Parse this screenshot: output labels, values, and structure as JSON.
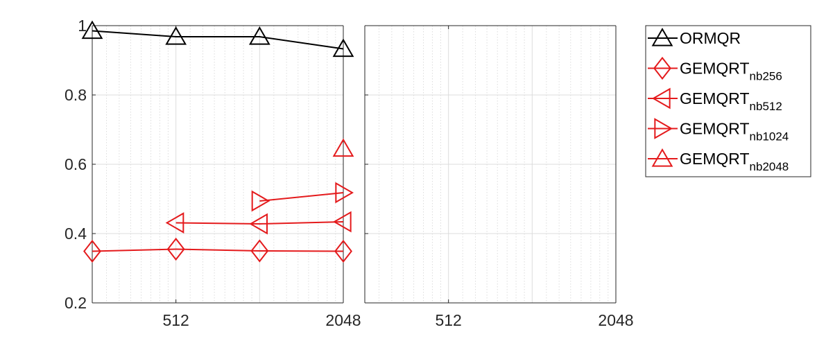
{
  "chart_data": [
    {
      "type": "line",
      "x_scale": "log2",
      "xlim": [
        256,
        2048
      ],
      "ylim": [
        0.2,
        1.0
      ],
      "x_ticks": [
        512,
        2048
      ],
      "x_tick_labels": [
        "512",
        "2048"
      ],
      "y_ticks": [
        0.2,
        0.4,
        0.6,
        0.8,
        1.0
      ],
      "y_tick_labels": [
        "0.2",
        "0.4",
        "0.6",
        "0.8",
        "1"
      ],
      "grid": true,
      "series": [
        {
          "name": "ORMQR",
          "color": "#000000",
          "marker": "triangle-up",
          "x": [
            256,
            512,
            1024,
            2048
          ],
          "y": [
            0.985,
            0.968,
            0.968,
            0.933
          ]
        },
        {
          "name": "GEMQRT_nb256",
          "color": "#e41a1c",
          "marker": "diamond",
          "x": [
            256,
            512,
            1024,
            2048
          ],
          "y": [
            0.349,
            0.355,
            0.35,
            0.349
          ]
        },
        {
          "name": "GEMQRT_nb512",
          "color": "#e41a1c",
          "marker": "triangle-left",
          "x": [
            512,
            1024,
            2048
          ],
          "y": [
            0.431,
            0.428,
            0.434
          ]
        },
        {
          "name": "GEMQRT_nb1024",
          "color": "#e41a1c",
          "marker": "triangle-right",
          "x": [
            1024,
            2048
          ],
          "y": [
            0.494,
            0.518
          ]
        },
        {
          "name": "GEMQRT_nb2048",
          "color": "#e41a1c",
          "marker": "triangle-up",
          "x": [
            2048
          ],
          "y": [
            0.645
          ]
        }
      ]
    },
    {
      "type": "line",
      "x_scale": "log2",
      "xlim": [
        256,
        2048
      ],
      "x_ticks": [
        512,
        2048
      ],
      "x_tick_labels": [
        "512",
        "2048"
      ],
      "grid": true,
      "series": []
    }
  ],
  "legend": {
    "placement": "outside-right",
    "entries": [
      {
        "main": "ORMQR",
        "sub": "",
        "color": "#000000",
        "marker": "triangle-up"
      },
      {
        "main": "GEMQRT",
        "sub": "nb256",
        "color": "#e41a1c",
        "marker": "diamond"
      },
      {
        "main": "GEMQRT",
        "sub": "nb512",
        "color": "#e41a1c",
        "marker": "triangle-left"
      },
      {
        "main": "GEMQRT",
        "sub": "nb1024",
        "color": "#e41a1c",
        "marker": "triangle-right"
      },
      {
        "main": "GEMQRT",
        "sub": "nb2048",
        "color": "#e41a1c",
        "marker": "triangle-up"
      }
    ]
  }
}
